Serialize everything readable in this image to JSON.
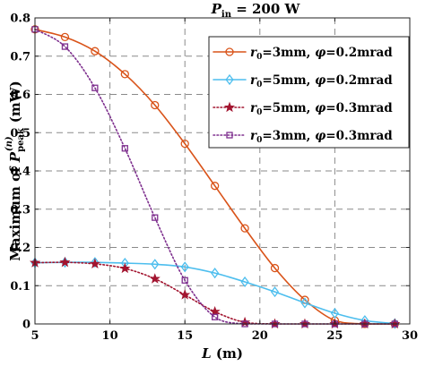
{
  "chart_data": {
    "type": "line",
    "title_main": "P",
    "title_sub": "in",
    "title_rest": " = 200 W",
    "xlabel_var": "L",
    "xlabel_unit": " (m)",
    "ylabel_pre": "Maximum of ",
    "ylabel_var": "P",
    "ylabel_sub": "peak",
    "ylabel_sup": "(n)",
    "ylabel_unit": " (mW)",
    "xlim": [
      5,
      30
    ],
    "ylim": [
      0,
      0.8
    ],
    "xticks": [
      "5",
      "10",
      "15",
      "20",
      "25",
      "30"
    ],
    "yticks": [
      "0",
      "0.1",
      "0.2",
      "0.3",
      "0.4",
      "0.5",
      "0.6",
      "0.7",
      "0.8"
    ],
    "grid": true,
    "legend_position": "top-right",
    "series": [
      {
        "legend_r": "r",
        "legend_r_sub": "0",
        "legend_r_val": "=3mm, ",
        "legend_phi": "φ",
        "legend_phi_val": "=0.2mrad",
        "color": "#D95319",
        "marker": "circle",
        "line": "solid",
        "x": [
          5,
          7,
          9,
          11,
          13,
          15,
          17,
          19,
          21,
          23,
          25,
          27,
          29
        ],
        "y": [
          0.77,
          0.75,
          0.713,
          0.653,
          0.572,
          0.471,
          0.361,
          0.25,
          0.146,
          0.063,
          0.009,
          0.0,
          0.0
        ]
      },
      {
        "legend_r": "r",
        "legend_r_sub": "0",
        "legend_r_val": "=5mm, ",
        "legend_phi": "φ",
        "legend_phi_val": "=0.2mrad",
        "color": "#4DBEEE",
        "marker": "diamond",
        "line": "solid",
        "x": [
          5,
          7,
          9,
          11,
          13,
          15,
          17,
          19,
          21,
          23,
          25,
          27,
          29
        ],
        "y": [
          0.16,
          0.161,
          0.161,
          0.159,
          0.156,
          0.149,
          0.133,
          0.11,
          0.084,
          0.055,
          0.028,
          0.009,
          0.001
        ]
      },
      {
        "legend_r": "r",
        "legend_r_sub": "0",
        "legend_r_val": "=5mm, ",
        "legend_phi": "φ",
        "legend_phi_val": "=0.3mrad",
        "color": "#A2142F",
        "marker": "star",
        "line": "dotted",
        "x": [
          5,
          7,
          9,
          11,
          13,
          15,
          17,
          19,
          21,
          23,
          25,
          27,
          29
        ],
        "y": [
          0.16,
          0.161,
          0.157,
          0.145,
          0.118,
          0.076,
          0.032,
          0.004,
          0.0,
          0.0,
          0.0,
          0.0,
          0.0
        ]
      },
      {
        "legend_r": "r",
        "legend_r_sub": "0",
        "legend_r_val": "=3mm, ",
        "legend_phi": "φ",
        "legend_phi_val": "=0.3mrad",
        "color": "#7E2F8E",
        "marker": "square",
        "line": "dotted",
        "x": [
          5,
          7,
          9,
          11,
          13,
          15,
          17,
          19,
          21,
          23,
          25,
          27,
          29
        ],
        "y": [
          0.77,
          0.725,
          0.617,
          0.459,
          0.278,
          0.114,
          0.018,
          0.0,
          0.0,
          0.0,
          0.0,
          0.0,
          0.0
        ]
      }
    ]
  }
}
